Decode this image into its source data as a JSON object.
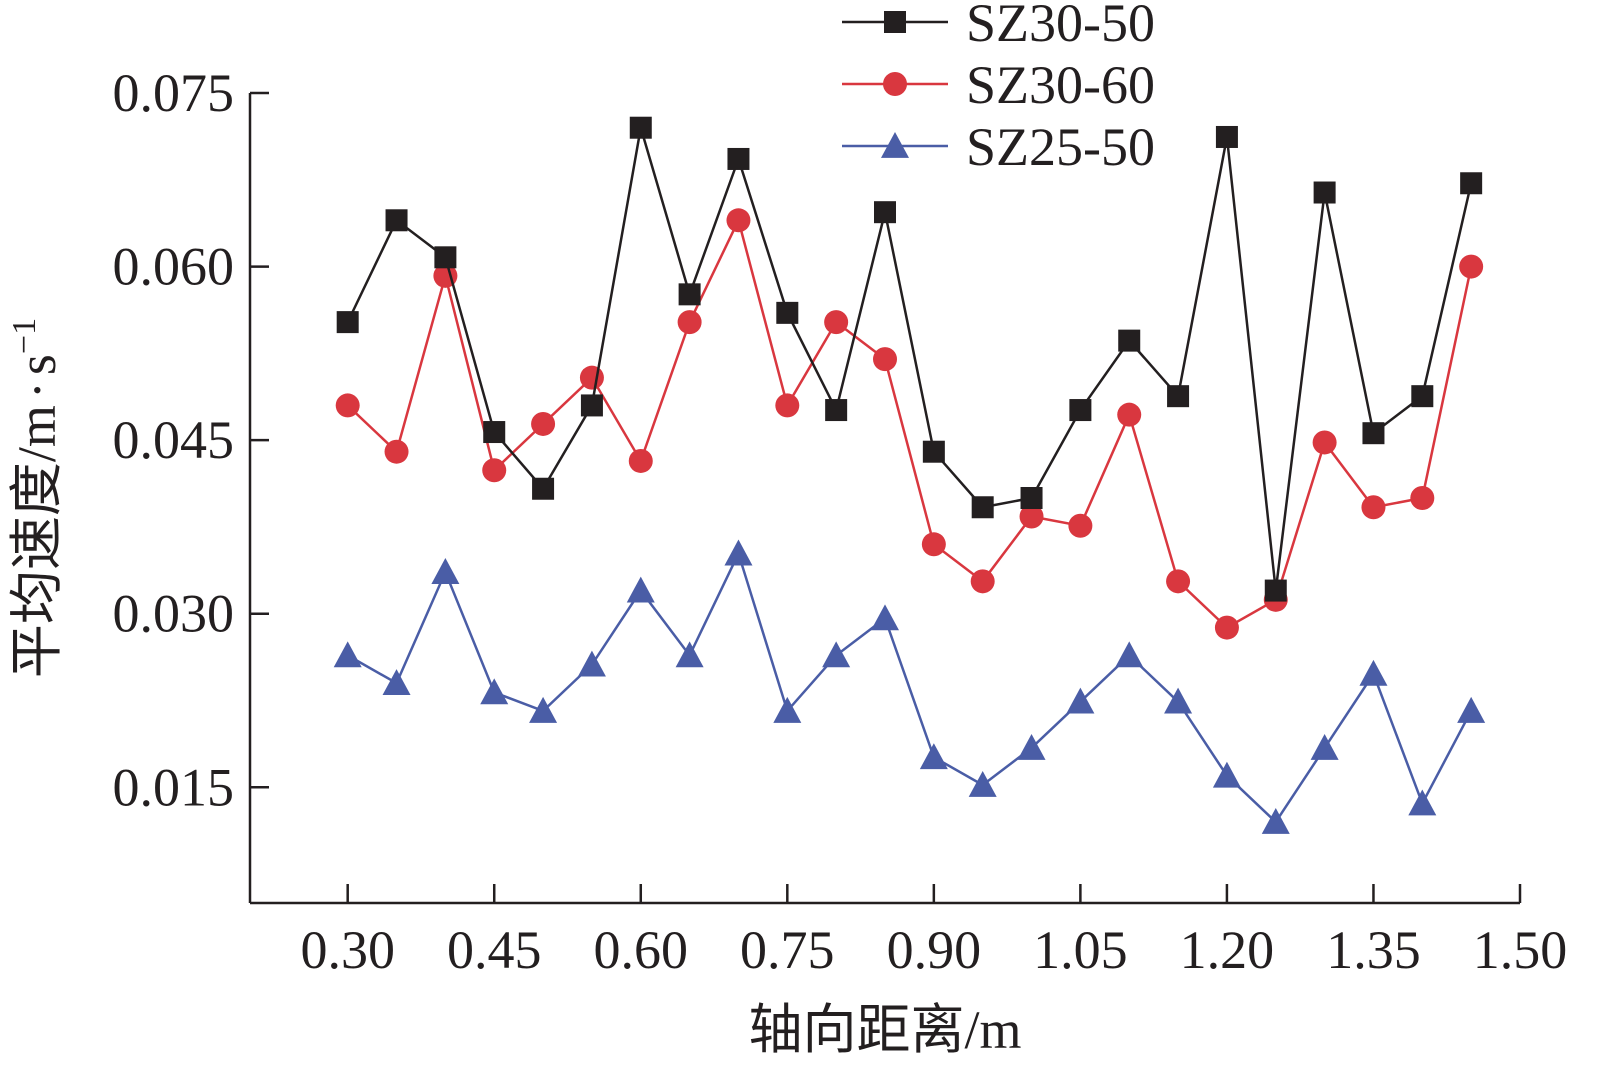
{
  "chart_data": {
    "type": "line",
    "xlabel": "轴向距离/m",
    "ylabel": {
      "base": "平均速度/m",
      "dot": "·",
      "unit": "s",
      "exp": "−1"
    },
    "xlim": [
      0.2,
      1.5
    ],
    "ylim": [
      0.005,
      0.075
    ],
    "x_ticks": [
      0.3,
      0.45,
      0.6,
      0.75,
      0.9,
      1.05,
      1.2,
      1.35,
      1.5
    ],
    "x_tick_labels": [
      "0.30",
      "0.45",
      "0.60",
      "0.75",
      "0.90",
      "1.05",
      "1.20",
      "1.35",
      "1.50"
    ],
    "y_ticks": [
      0.015,
      0.03,
      0.045,
      0.06,
      0.075
    ],
    "y_tick_labels": [
      "0.015",
      "0.030",
      "0.045",
      "0.060",
      "0.075"
    ],
    "legend_position": "top",
    "x": [
      0.3,
      0.35,
      0.4,
      0.45,
      0.5,
      0.55,
      0.6,
      0.65,
      0.7,
      0.75,
      0.8,
      0.85,
      0.9,
      0.95,
      1.0,
      1.05,
      1.1,
      1.15,
      1.2,
      1.25,
      1.3,
      1.35,
      1.4,
      1.45
    ],
    "series": [
      {
        "name": "SZ30-50",
        "color": "#231f20",
        "marker": "square",
        "values": [
          0.0552,
          0.064,
          0.0608,
          0.0457,
          0.0408,
          0.048,
          0.072,
          0.0576,
          0.0693,
          0.056,
          0.0476,
          0.0647,
          0.044,
          0.0392,
          0.04,
          0.0476,
          0.0536,
          0.0488,
          0.0712,
          0.032,
          0.0664,
          0.0456,
          0.0488,
          0.0672
        ]
      },
      {
        "name": "SZ30-60",
        "color": "#d9373f",
        "marker": "circle",
        "values": [
          0.048,
          0.044,
          0.0592,
          0.0424,
          0.0464,
          0.0504,
          0.0432,
          0.0552,
          0.064,
          0.048,
          0.0552,
          0.052,
          0.036,
          0.0328,
          0.0384,
          0.0376,
          0.0472,
          0.0328,
          0.0288,
          0.0312,
          0.0448,
          0.0392,
          0.04,
          0.06
        ]
      },
      {
        "name": "SZ25-50",
        "color": "#4a5da6",
        "marker": "triangle",
        "values": [
          0.0264,
          0.024,
          0.0336,
          0.0232,
          0.0216,
          0.0256,
          0.032,
          0.0264,
          0.0352,
          0.0216,
          0.0264,
          0.0296,
          0.0176,
          0.0152,
          0.0184,
          0.0224,
          0.0264,
          0.0224,
          0.016,
          0.012,
          0.0184,
          0.0248,
          0.0136,
          0.0216
        ]
      }
    ]
  }
}
